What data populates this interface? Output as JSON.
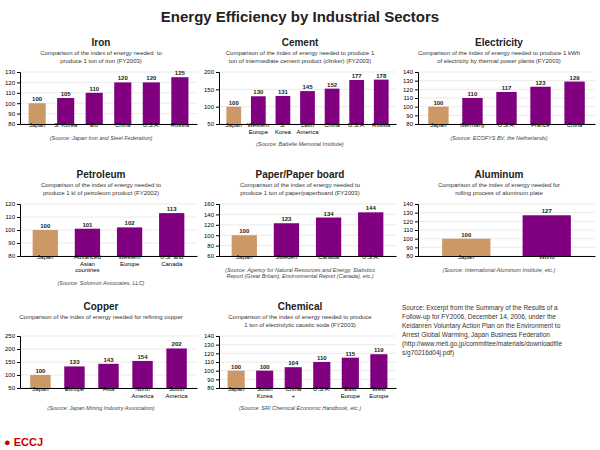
{
  "title": "Energy Efficiency by Industrial Sectors",
  "annotations": [
    "Source: Excerpt from the Summary of the Results of a\nFollow-up for FY2006, December 14, 2006, under the\nKeidanren Voluntary Action Plan on the Environment to\nArrest Global Warming, Japan Business Federation\n(http://www.meti.go.jp/committee/materials/downloadfile\ns/g70216d04j.pdf)",
    "● ECCJ"
  ],
  "chart_data": [
    {
      "type": "bar",
      "title": "Iron",
      "subtitle": "Comparison of the index of energy needed  to\nproduce 1 ton of iron (FY2003)",
      "annotations": [
        "(Source: Japan Iron and Steel Federation)"
      ],
      "categories": [
        "Japan",
        "S. Korea",
        "EU",
        "China",
        "U.S.A.",
        "Russia"
      ],
      "values": [
        100,
        105,
        110,
        120,
        120,
        125
      ],
      "colors": [
        "#cc9966",
        "#800080",
        "#800080",
        "#800080",
        "#800080",
        "#800080"
      ],
      "ylim": [
        80,
        130
      ],
      "yticks": [
        80,
        90,
        100,
        110,
        120,
        130
      ],
      "grid": true,
      "data_labels": true
    },
    {
      "type": "bar",
      "title": "Cement",
      "subtitle": "Comparison of the index of energy needed to produce 1\nton of intermediate cement product (clinker) (FY2003)",
      "annotations": [
        "(Source: Battelle Memorial Institute)"
      ],
      "categories": [
        "Japan",
        "Western\nEurope",
        "S.\nKorea",
        "Latin\nAmerica",
        "China",
        "U.S.A.",
        "Russia"
      ],
      "values": [
        100,
        130,
        131,
        145,
        152,
        177,
        178
      ],
      "colors": [
        "#cc9966",
        "#800080",
        "#800080",
        "#800080",
        "#800080",
        "#800080",
        "#800080"
      ],
      "ylim": [
        50,
        200
      ],
      "yticks": [
        50,
        100,
        150,
        200
      ],
      "grid": true,
      "data_labels": true
    },
    {
      "type": "bar",
      "title": "Electricity",
      "subtitle": "Comparison of the index of energy needed to produce 1 kWh\nof electricity by thermal power plants (FY2003)",
      "annotations": [
        "(Source: ECOFYS BV, the Netherlands)"
      ],
      "categories": [
        "Japan",
        "Germany",
        "U.S.A.",
        "France",
        "China"
      ],
      "values": [
        100,
        110,
        117,
        123,
        129
      ],
      "colors": [
        "#cc9966",
        "#800080",
        "#800080",
        "#800080",
        "#800080"
      ],
      "ylim": [
        80,
        140
      ],
      "yticks": [
        80,
        90,
        100,
        110,
        120,
        130,
        140
      ],
      "grid": true,
      "data_labels": true
    },
    {
      "type": "bar",
      "title": "Petroleum",
      "subtitle": "Comparison of the index of energy needed to\nproduce 1 kl of petroleum product (FY2002)",
      "annotations": [
        "(Source: Solomon Associates, LLC)"
      ],
      "categories": [
        "Japan",
        "Advanced\nAsian\ncountries",
        "Western\nEurope",
        "U.S. and\nCanada"
      ],
      "values": [
        100,
        101,
        102,
        113
      ],
      "colors": [
        "#cc9966",
        "#800080",
        "#800080",
        "#800080"
      ],
      "ylim": [
        80,
        120
      ],
      "yticks": [
        80,
        90,
        100,
        110,
        120
      ],
      "grid": true,
      "data_labels": true
    },
    {
      "type": "bar",
      "title": "Paper/Paper board",
      "subtitle": "Comparison of the index of energy needed to\nproduce 1 ton of paper/paperboard (FY2003)",
      "annotations": [
        "(Source: Agency for Natural Resources and Energy, Statistics\nReport (Great Britain), Environmental Report (Canada), etc.)"
      ],
      "categories": [
        "Japan",
        "Sweden",
        "Canada",
        "U.S.A."
      ],
      "values": [
        100,
        123,
        134,
        144
      ],
      "colors": [
        "#cc9966",
        "#800080",
        "#800080",
        "#800080"
      ],
      "ylim": [
        60,
        160
      ],
      "yticks": [
        60,
        80,
        100,
        120,
        140,
        160
      ],
      "grid": true,
      "data_labels": true
    },
    {
      "type": "bar",
      "title": "Aluminum",
      "subtitle": "Comparison of the index of energy needed for\nrolling process of aluminum plate",
      "annotations": [
        "(Source: International Aluminum Institute, etc.)"
      ],
      "categories": [
        "Japan",
        "World"
      ],
      "values": [
        100,
        127
      ],
      "colors": [
        "#cc9966",
        "#800080"
      ],
      "ylim": [
        80,
        140
      ],
      "yticks": [
        80,
        90,
        100,
        110,
        120,
        130,
        140
      ],
      "grid": true,
      "data_labels": true
    },
    {
      "type": "bar",
      "title": "Copper",
      "subtitle": "Comparison of the index of energy needed for refining copper",
      "annotations": [
        "(Source: Japan Mining Industry Association)"
      ],
      "categories": [
        "Japan",
        "Europe",
        "Asia",
        "North\nAmerica",
        "South\nAmerica"
      ],
      "values": [
        100,
        133,
        143,
        154,
        202
      ],
      "colors": [
        "#cc9966",
        "#800080",
        "#800080",
        "#800080",
        "#800080"
      ],
      "ylim": [
        50,
        250
      ],
      "yticks": [
        50,
        100,
        150,
        200,
        250
      ],
      "grid": true,
      "data_labels": true
    },
    {
      "type": "bar",
      "title": "Chemical",
      "subtitle": "Comparison of the index of energy needed to produce\n1 ton of electrolytic caustic soda (FY2003)",
      "annotations": [
        "(Source: SRI Chemical Economic Handbook, etc.)"
      ],
      "categories": [
        "Japan",
        "South\nKorea",
        "China\n+",
        "U.S.A.",
        "East\nEurope",
        "West\nEurope"
      ],
      "values": [
        100,
        100,
        104,
        110,
        115,
        119
      ],
      "colors": [
        "#cc9966",
        "#800080",
        "#800080",
        "#800080",
        "#800080",
        "#800080"
      ],
      "ylim": [
        80,
        140
      ],
      "yticks": [
        80,
        90,
        100,
        110,
        120,
        130,
        140
      ],
      "grid": true,
      "data_labels": true
    }
  ]
}
